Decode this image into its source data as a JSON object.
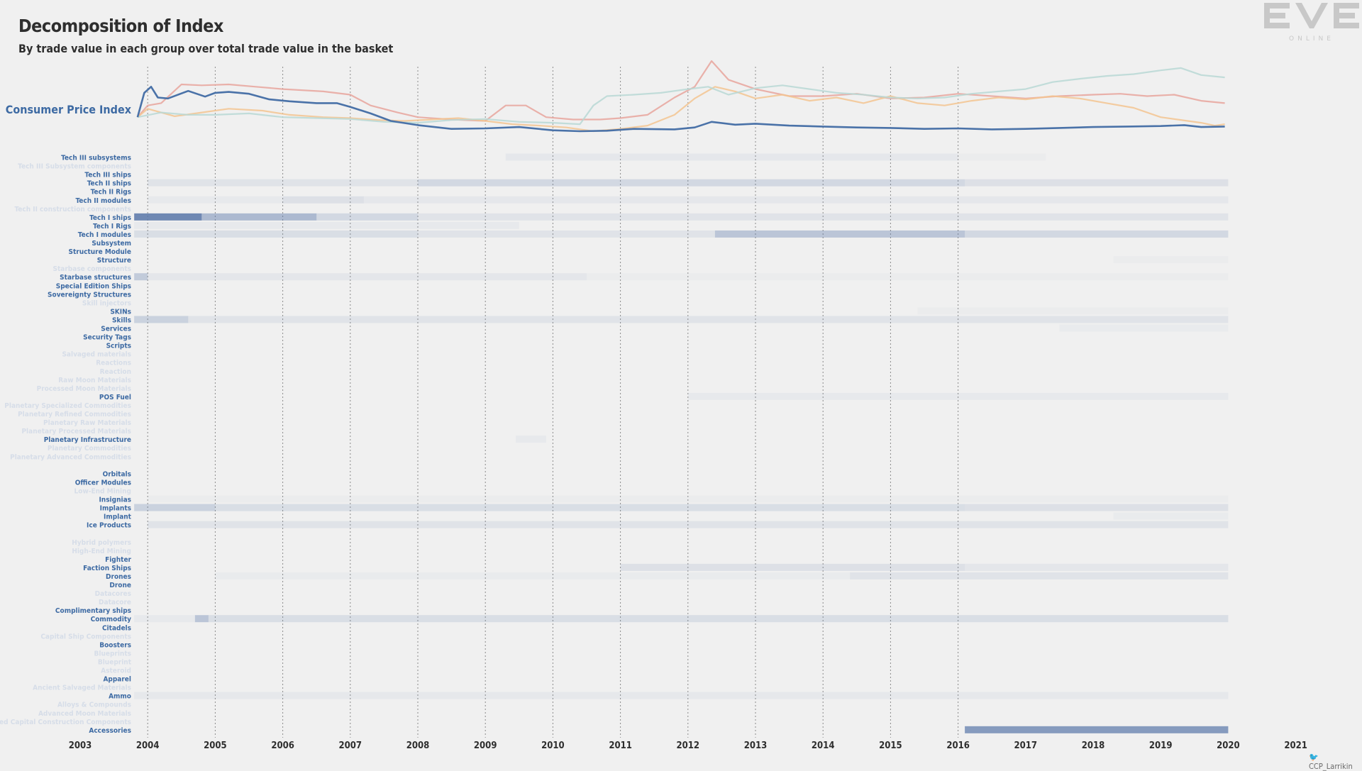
{
  "header": {
    "title": "Decomposition of Index",
    "subtitle": "By trade value in each group over total trade value in the basket"
  },
  "logo": {
    "text": "EVE",
    "subtext": "ONLINE"
  },
  "credit": {
    "text": "CCP_Larrikin",
    "icon": "twitter-bird-icon"
  },
  "colors": {
    "cpi": "#4a72a8",
    "accent_label": "#3d6aa3",
    "faint_label": "#d6dde8",
    "red": "#e8a49c",
    "orange": "#f3c490",
    "teal": "#b9d8d5",
    "heat": "#5876a8"
  },
  "chart_data": [
    {
      "type": "line",
      "title": "Consumer Price Index",
      "x_domain": [
        2003,
        2021
      ],
      "series": [
        {
          "name": "Consumer Price Index",
          "color": "#4a72a8",
          "x": [
            2003.85,
            2003.95,
            2004.05,
            2004.15,
            2004.3,
            2004.6,
            2004.85,
            2005,
            2005.2,
            2005.5,
            2005.8,
            2006.1,
            2006.5,
            2006.8,
            2007,
            2007.3,
            2007.6,
            2008,
            2008.5,
            2009,
            2009.5,
            2010,
            2010.4,
            2010.8,
            2011.2,
            2011.8,
            2012.1,
            2012.35,
            2012.7,
            2013,
            2013.5,
            2014,
            2014.5,
            2015,
            2015.5,
            2016,
            2016.5,
            2017,
            2017.5,
            2018,
            2018.5,
            2019,
            2019.35,
            2019.6,
            2019.95
          ],
          "y": [
            0.3,
            0.82,
            0.95,
            0.72,
            0.7,
            0.86,
            0.74,
            0.82,
            0.84,
            0.8,
            0.68,
            0.64,
            0.6,
            0.6,
            0.52,
            0.38,
            0.22,
            0.13,
            0.05,
            0.06,
            0.09,
            0.02,
            0.0,
            0.01,
            0.05,
            0.04,
            0.08,
            0.2,
            0.14,
            0.16,
            0.12,
            0.1,
            0.08,
            0.07,
            0.05,
            0.06,
            0.04,
            0.05,
            0.07,
            0.09,
            0.1,
            0.11,
            0.13,
            0.09,
            0.1
          ]
        },
        {
          "color": "#e8a49c",
          "x": [
            2003.85,
            2004,
            2004.2,
            2004.5,
            2004.8,
            2005.2,
            2005.6,
            2006,
            2006.6,
            2007,
            2007.3,
            2007.7,
            2008,
            2008.5,
            2009,
            2009.3,
            2009.6,
            2009.9,
            2010.3,
            2010.7,
            2011,
            2011.4,
            2011.8,
            2012.1,
            2012.35,
            2012.6,
            2013,
            2013.5,
            2014,
            2014.5,
            2015,
            2015.5,
            2016,
            2016.5,
            2017,
            2017.5,
            2018,
            2018.4,
            2018.8,
            2019.2,
            2019.6,
            2019.95
          ],
          "y": [
            0.3,
            0.55,
            0.6,
            1.0,
            0.98,
            1.0,
            0.95,
            0.9,
            0.85,
            0.78,
            0.55,
            0.4,
            0.3,
            0.25,
            0.22,
            0.55,
            0.55,
            0.3,
            0.25,
            0.25,
            0.28,
            0.35,
            0.72,
            0.95,
            1.5,
            1.1,
            0.9,
            0.75,
            0.75,
            0.8,
            0.7,
            0.72,
            0.8,
            0.75,
            0.7,
            0.75,
            0.78,
            0.8,
            0.75,
            0.78,
            0.65,
            0.6
          ]
        },
        {
          "color": "#f3c490",
          "x": [
            2003.85,
            2004,
            2004.4,
            2004.8,
            2005.2,
            2005.7,
            2006.1,
            2006.6,
            2007,
            2007.4,
            2007.8,
            2008.2,
            2008.6,
            2009,
            2009.4,
            2009.8,
            2010.2,
            2010.6,
            2011,
            2011.4,
            2011.8,
            2012.1,
            2012.4,
            2012.7,
            2013,
            2013.4,
            2013.8,
            2014.2,
            2014.6,
            2015,
            2015.4,
            2015.8,
            2016.2,
            2016.6,
            2017,
            2017.4,
            2017.8,
            2018.2,
            2018.6,
            2019,
            2019.4,
            2019.6,
            2019.8,
            2019.95
          ],
          "y": [
            0.3,
            0.48,
            0.32,
            0.4,
            0.48,
            0.44,
            0.35,
            0.3,
            0.28,
            0.24,
            0.22,
            0.25,
            0.28,
            0.22,
            0.15,
            0.12,
            0.08,
            0.0,
            0.05,
            0.12,
            0.35,
            0.7,
            0.95,
            0.85,
            0.7,
            0.78,
            0.65,
            0.72,
            0.6,
            0.75,
            0.6,
            0.55,
            0.65,
            0.72,
            0.68,
            0.75,
            0.7,
            0.6,
            0.5,
            0.3,
            0.22,
            0.18,
            0.12,
            0.15
          ]
        },
        {
          "color": "#b9d8d5",
          "x": [
            2003.85,
            2004.2,
            2004.6,
            2005,
            2005.5,
            2006,
            2006.5,
            2007,
            2007.5,
            2008,
            2008.5,
            2009,
            2009.5,
            2010,
            2010.4,
            2010.6,
            2010.8,
            2011.2,
            2011.6,
            2012,
            2012.3,
            2012.6,
            2013,
            2013.4,
            2013.8,
            2014.2,
            2014.6,
            2015,
            2015.4,
            2015.8,
            2016.2,
            2016.6,
            2017,
            2017.4,
            2017.8,
            2018.2,
            2018.6,
            2019,
            2019.3,
            2019.6,
            2019.95
          ],
          "y": [
            0.3,
            0.4,
            0.35,
            0.35,
            0.38,
            0.3,
            0.28,
            0.26,
            0.2,
            0.18,
            0.24,
            0.26,
            0.2,
            0.18,
            0.15,
            0.55,
            0.75,
            0.78,
            0.82,
            0.9,
            0.95,
            0.78,
            0.92,
            0.98,
            0.9,
            0.82,
            0.78,
            0.72,
            0.7,
            0.72,
            0.8,
            0.85,
            0.9,
            1.05,
            1.12,
            1.18,
            1.22,
            1.3,
            1.35,
            1.2,
            1.15
          ]
        }
      ]
    },
    {
      "type": "heatmap",
      "x_domain": [
        2003,
        2021
      ],
      "x_ticks": [
        "2003",
        "2004",
        "2005",
        "2006",
        "2007",
        "2008",
        "2009",
        "2010",
        "2011",
        "2012",
        "2013",
        "2014",
        "2015",
        "2016",
        "2017",
        "2018",
        "2019",
        "2020",
        "2021"
      ],
      "gridlines": [
        "2004",
        "2005",
        "2006",
        "2007",
        "2008",
        "2009",
        "2010",
        "2011",
        "2012",
        "2013",
        "2014",
        "2015",
        "2016"
      ],
      "color": "#5876a8",
      "rows": [
        {
          "label": "Tech III subsystems",
          "emphasis": true,
          "segments": [
            [
              2009.3,
              2016.0,
              0.07
            ],
            [
              2016.0,
              2017.3,
              0.03
            ]
          ]
        },
        {
          "label": "Tech III Subsystem components",
          "emphasis": false,
          "segments": []
        },
        {
          "label": "Tech III ships",
          "emphasis": true,
          "segments": []
        },
        {
          "label": "Tech II ships",
          "emphasis": true,
          "segments": [
            [
              2004.0,
              2008.0,
              0.1
            ],
            [
              2008.0,
              2016.1,
              0.2
            ],
            [
              2016.1,
              2020.0,
              0.12
            ]
          ]
        },
        {
          "label": "Tech II Rigs",
          "emphasis": true,
          "segments": []
        },
        {
          "label": "Tech II modules",
          "emphasis": true,
          "segments": [
            [
              2004.0,
              2006.0,
              0.05
            ],
            [
              2006.0,
              2007.2,
              0.12
            ],
            [
              2007.2,
              2020.0,
              0.07
            ]
          ]
        },
        {
          "label": "Tech II construction components",
          "emphasis": false,
          "segments": []
        },
        {
          "label": "Tech I ships",
          "emphasis": true,
          "segments": [
            [
              2003.8,
              2004.8,
              0.85
            ],
            [
              2004.8,
              2006.5,
              0.45
            ],
            [
              2006.5,
              2008.0,
              0.2
            ],
            [
              2008.0,
              2020.0,
              0.1
            ]
          ]
        },
        {
          "label": "Tech I Rigs",
          "emphasis": true,
          "segments": [
            [
              2003.8,
              2009.5,
              0.05
            ]
          ]
        },
        {
          "label": "Tech I modules",
          "emphasis": true,
          "segments": [
            [
              2003.8,
              2008.0,
              0.15
            ],
            [
              2008.0,
              2012.4,
              0.1
            ],
            [
              2012.4,
              2016.1,
              0.35
            ],
            [
              2016.1,
              2020.0,
              0.2
            ]
          ]
        },
        {
          "label": "Subsystem",
          "emphasis": true,
          "segments": []
        },
        {
          "label": "Structure Module",
          "emphasis": true,
          "segments": []
        },
        {
          "label": "Structure",
          "emphasis": true,
          "segments": [
            [
              2018.3,
              2020.0,
              0.03
            ]
          ]
        },
        {
          "label": "Starbase components",
          "emphasis": false,
          "segments": []
        },
        {
          "label": "Starbase structures",
          "emphasis": true,
          "segments": [
            [
              2003.8,
              2004.0,
              0.3
            ],
            [
              2004.0,
              2010.5,
              0.08
            ],
            [
              2010.5,
              2020.0,
              0.03
            ]
          ]
        },
        {
          "label": "Special Edition Ships",
          "emphasis": true,
          "segments": []
        },
        {
          "label": "Sovereignty Structures",
          "emphasis": true,
          "segments": []
        },
        {
          "label": "Skill injectors",
          "emphasis": false,
          "segments": []
        },
        {
          "label": "SKINs",
          "emphasis": true,
          "segments": [
            [
              2015.4,
              2020.0,
              0.03
            ]
          ]
        },
        {
          "label": "Skills",
          "emphasis": true,
          "segments": [
            [
              2003.8,
              2004.6,
              0.25
            ],
            [
              2004.6,
              2020.0,
              0.1
            ]
          ]
        },
        {
          "label": "Services",
          "emphasis": true,
          "segments": [
            [
              2017.5,
              2020.0,
              0.04
            ]
          ]
        },
        {
          "label": "Security Tags",
          "emphasis": true,
          "segments": []
        },
        {
          "label": "Scripts",
          "emphasis": true,
          "segments": []
        },
        {
          "label": "Salvaged materials",
          "emphasis": false,
          "segments": []
        },
        {
          "label": "Reactions",
          "emphasis": false,
          "segments": []
        },
        {
          "label": "Reaction",
          "emphasis": false,
          "segments": []
        },
        {
          "label": "Raw Moon Materials",
          "emphasis": false,
          "segments": []
        },
        {
          "label": "Processed Moon Materials",
          "emphasis": false,
          "segments": []
        },
        {
          "label": "POS Fuel",
          "emphasis": true,
          "segments": [
            [
              2012.0,
              2020.0,
              0.05
            ]
          ]
        },
        {
          "label": "Planetary Specialized Commodities",
          "emphasis": false,
          "segments": []
        },
        {
          "label": "Planetary Refined Commodities",
          "emphasis": false,
          "segments": []
        },
        {
          "label": "Planetary Raw Materials",
          "emphasis": false,
          "segments": []
        },
        {
          "label": "Planetary Processed Materials",
          "emphasis": false,
          "segments": []
        },
        {
          "label": "Planetary Infrastructure",
          "emphasis": true,
          "segments": [
            [
              2009.45,
              2009.9,
              0.05
            ]
          ]
        },
        {
          "label": "Planetary Commodities",
          "emphasis": false,
          "segments": []
        },
        {
          "label": "Planetary Advanced Commodities",
          "emphasis": false,
          "segments": []
        },
        {
          "label": "",
          "emphasis": false,
          "segments": []
        },
        {
          "label": "Orbitals",
          "emphasis": true,
          "segments": []
        },
        {
          "label": "Officer Modules",
          "emphasis": true,
          "segments": []
        },
        {
          "label": "Low-End Mining",
          "emphasis": false,
          "segments": []
        },
        {
          "label": "Insignias",
          "emphasis": true,
          "segments": [
            [
              2004.0,
              2020.0,
              0.03
            ]
          ]
        },
        {
          "label": "Implants",
          "emphasis": true,
          "segments": [
            [
              2003.8,
              2005.0,
              0.25
            ],
            [
              2005.0,
              2016.1,
              0.15
            ],
            [
              2016.1,
              2020.0,
              0.12
            ]
          ]
        },
        {
          "label": "Implant",
          "emphasis": true,
          "segments": [
            [
              2018.3,
              2020.0,
              0.04
            ]
          ]
        },
        {
          "label": "Ice Products",
          "emphasis": true,
          "segments": [
            [
              2004.0,
              2020.0,
              0.1
            ]
          ]
        },
        {
          "label": "",
          "emphasis": false,
          "segments": []
        },
        {
          "label": "Hybrid polymers",
          "emphasis": false,
          "segments": []
        },
        {
          "label": "High-End Mining",
          "emphasis": false,
          "segments": []
        },
        {
          "label": "Fighter",
          "emphasis": true,
          "segments": []
        },
        {
          "label": "Faction Ships",
          "emphasis": true,
          "segments": [
            [
              2011.0,
              2016.1,
              0.12
            ],
            [
              2016.1,
              2020.0,
              0.08
            ]
          ]
        },
        {
          "label": "Drones",
          "emphasis": true,
          "segments": [
            [
              2005.0,
              2014.4,
              0.04
            ],
            [
              2014.4,
              2020.0,
              0.1
            ]
          ]
        },
        {
          "label": "Drone",
          "emphasis": true,
          "segments": []
        },
        {
          "label": "Datacores",
          "emphasis": false,
          "segments": []
        },
        {
          "label": "Datacore",
          "emphasis": false,
          "segments": []
        },
        {
          "label": "Complimentary ships",
          "emphasis": true,
          "segments": []
        },
        {
          "label": "Commodity",
          "emphasis": true,
          "segments": [
            [
              2003.8,
              2004.7,
              0.05
            ],
            [
              2004.7,
              2004.9,
              0.35
            ],
            [
              2004.9,
              2020.0,
              0.15
            ]
          ]
        },
        {
          "label": "Citadels",
          "emphasis": true,
          "segments": []
        },
        {
          "label": "Capital Ship Components",
          "emphasis": false,
          "segments": []
        },
        {
          "label": "Boosters",
          "emphasis": true,
          "segments": []
        },
        {
          "label": "Blueprints",
          "emphasis": false,
          "segments": []
        },
        {
          "label": "Blueprint",
          "emphasis": false,
          "segments": []
        },
        {
          "label": "Asteroid",
          "emphasis": false,
          "segments": []
        },
        {
          "label": "Apparel",
          "emphasis": true,
          "segments": []
        },
        {
          "label": "Ancient Salvaged Materials",
          "emphasis": false,
          "segments": []
        },
        {
          "label": "Ammo",
          "emphasis": true,
          "segments": [
            [
              2003.8,
              2020.0,
              0.06
            ]
          ]
        },
        {
          "label": "Alloys & Compounds",
          "emphasis": false,
          "segments": []
        },
        {
          "label": "Advanced Moon Materials",
          "emphasis": false,
          "segments": []
        },
        {
          "label": "Advanced Capital Construction Components",
          "emphasis": false,
          "segments": []
        },
        {
          "label": "Accessories",
          "emphasis": true,
          "segments": [
            [
              2016.1,
              2020.0,
              0.7
            ]
          ]
        }
      ]
    }
  ]
}
